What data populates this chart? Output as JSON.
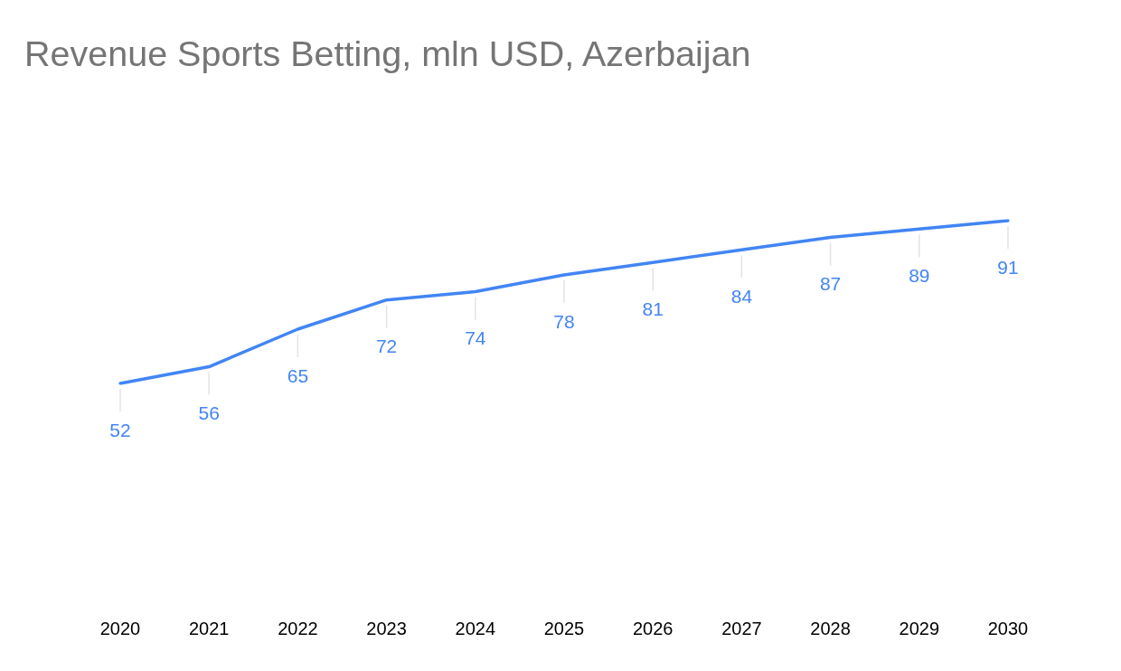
{
  "chart_data": {
    "type": "line",
    "title": "Revenue Sports Betting, mln USD, Azerbaijan",
    "categories": [
      "2020",
      "2021",
      "2022",
      "2023",
      "2024",
      "2025",
      "2026",
      "2027",
      "2028",
      "2029",
      "2030"
    ],
    "values": [
      52,
      56,
      65,
      72,
      74,
      78,
      81,
      84,
      87,
      89,
      91
    ],
    "color": "#4285f4",
    "tick_labels": "x",
    "data_labels": true,
    "marker": "none",
    "line_style": "solid"
  }
}
